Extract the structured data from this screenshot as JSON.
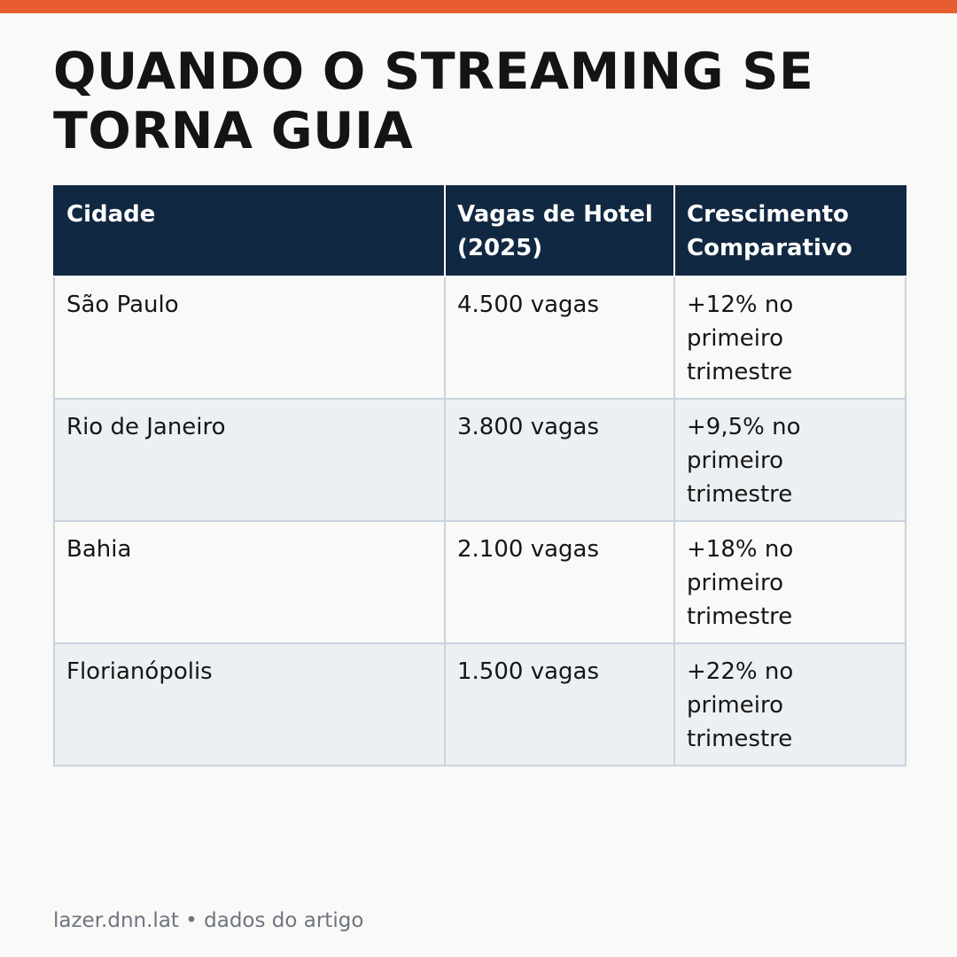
{
  "accent_color": "#e85d30",
  "header_color": "#112842",
  "title": "QUANDO O STREAMING SE TORNA GUIA",
  "table": {
    "headers": [
      "Cidade",
      "Vagas de Hotel (2025)",
      "Crescimento Comparativo"
    ],
    "rows": [
      [
        "São Paulo",
        "4.500 vagas",
        "+12% no primeiro trimestre"
      ],
      [
        "Rio de Janeiro",
        "3.800 vagas",
        "+9,5% no primeiro trimestre"
      ],
      [
        "Bahia",
        "2.100 vagas",
        "+18% no primeiro trimestre"
      ],
      [
        "Florianópolis",
        "1.500 vagas",
        "+22% no primeiro trimestre"
      ]
    ]
  },
  "footer": {
    "source": "lazer.dnn.lat • dados do artigo"
  }
}
